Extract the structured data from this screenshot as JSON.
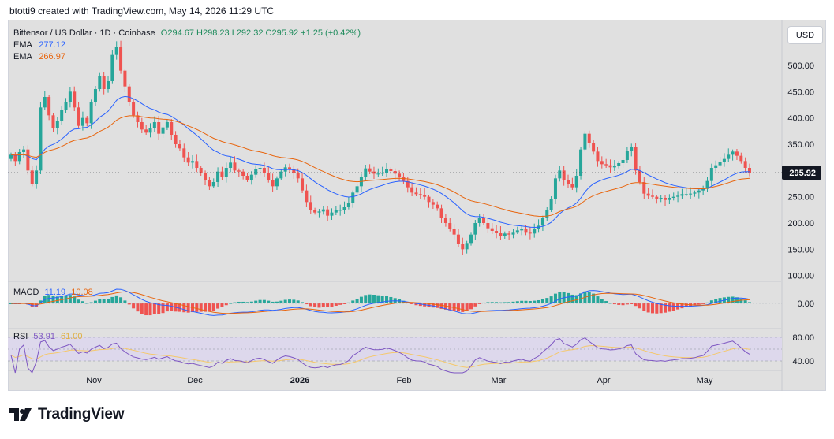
{
  "header": {
    "credit": "btotti9 created with TradingView.com, May 14, 2026 11:29 UTC"
  },
  "legend": {
    "symbol": "Bittensor / US Dollar · 1D · Coinbase",
    "ohlc": "O294.67  H298.23  L292.32  C295.92  +1.25 (+0.42%)",
    "ema1_label": "EMA",
    "ema1_value": "277.12",
    "ema2_label": "EMA",
    "ema2_value": "266.97"
  },
  "currency_button": "USD",
  "macd_legend": {
    "label": "MACD",
    "v1": "11.19",
    "v2": "10.08"
  },
  "rsi_legend": {
    "label": "RSI",
    "v1": "53.91",
    "v2": "61.00"
  },
  "brand": {
    "name": "TradingView"
  },
  "colors": {
    "up": "#26a69a",
    "down": "#ef5350",
    "ema_fast": "#2962ff",
    "ema_slow": "#e8650e",
    "rsi": "#7e57c2",
    "rsi_ma": "#f5c86b",
    "last_price_bg": "#131722"
  },
  "chart_data": {
    "type": "candlestick",
    "price_axis": {
      "ticks": [
        "500.00",
        "450.00",
        "400.00",
        "350.00",
        "300.00",
        "250.00",
        "200.00",
        "150.00",
        "100.00"
      ],
      "range": [
        92,
        542
      ]
    },
    "last_price": {
      "value": 295.92,
      "label": "295.92"
    },
    "time_axis": {
      "labels": [
        "Nov",
        "Dec",
        "2026",
        "Feb",
        "Mar",
        "Apr",
        "May"
      ]
    },
    "close_series": [
      330,
      318,
      335,
      340,
      300,
      275,
      300,
      420,
      440,
      405,
      380,
      395,
      415,
      430,
      450,
      420,
      385,
      400,
      390,
      430,
      455,
      480,
      455,
      470,
      520,
      535,
      490,
      460,
      430,
      405,
      392,
      378,
      372,
      380,
      392,
      370,
      382,
      392,
      368,
      350,
      342,
      325,
      315,
      318,
      305,
      295,
      282,
      270,
      278,
      298,
      288,
      305,
      315,
      300,
      298,
      290,
      282,
      292,
      302,
      305,
      296,
      282,
      270,
      285,
      298,
      306,
      302,
      295,
      285,
      262,
      240,
      225,
      220,
      222,
      226,
      214,
      220,
      224,
      225,
      230,
      238,
      258,
      270,
      288,
      304,
      298,
      294,
      294,
      296,
      302,
      299,
      294,
      288,
      280,
      268,
      258,
      255,
      254,
      250,
      240,
      235,
      228,
      210,
      200,
      188,
      178,
      160,
      150,
      162,
      178,
      200,
      210,
      200,
      190,
      185,
      182,
      175,
      180,
      178,
      183,
      186,
      188,
      183,
      180,
      188,
      195,
      210,
      225,
      245,
      285,
      300,
      282,
      275,
      268,
      290,
      340,
      370,
      352,
      336,
      318,
      312,
      310,
      306,
      308,
      314,
      320,
      338,
      344,
      300,
      278,
      256,
      252,
      250,
      246,
      248,
      244,
      248,
      250,
      252,
      255,
      255,
      256,
      258,
      262,
      265,
      280,
      305,
      310,
      316,
      322,
      330,
      336,
      328,
      318,
      305,
      296
    ],
    "macd": {
      "label_values": [
        "11.19",
        "10.08"
      ],
      "zero_label": "0.00"
    },
    "rsi": {
      "ticks": [
        "80.00",
        "40.00"
      ],
      "label_values": [
        "53.91",
        "61.00"
      ]
    }
  }
}
